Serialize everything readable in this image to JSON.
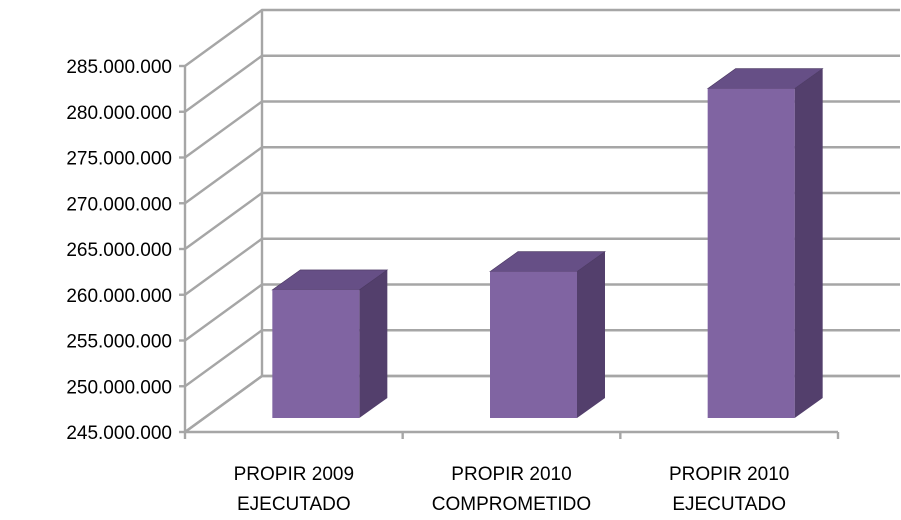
{
  "chart_data": {
    "type": "bar",
    "categories": [
      [
        "PROPIR 2009",
        "EJECUTADO"
      ],
      [
        "PROPIR 2010",
        "COMPROMETIDO"
      ],
      [
        "PROPIR 2010",
        "EJECUTADO"
      ]
    ],
    "values": [
      259000000,
      261000000,
      281000000
    ],
    "ylim": [
      245000000,
      285000000
    ],
    "yticks": [
      "245.000.000",
      "250.000.000",
      "255.000.000",
      "260.000.000",
      "265.000.000",
      "270.000.000",
      "275.000.000",
      "280.000.000",
      "285.000.000"
    ],
    "grid": true,
    "style": "3d-column",
    "colors": {
      "front": "#8064a2",
      "side": "#533f6c",
      "top": "#664f86"
    }
  }
}
